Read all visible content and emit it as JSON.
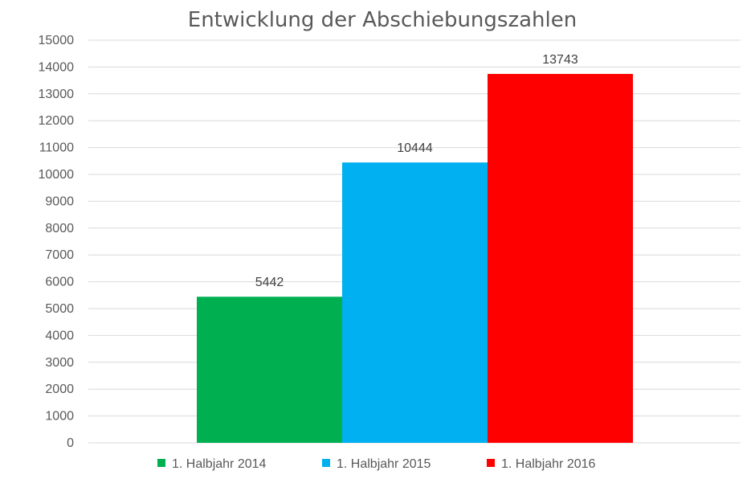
{
  "chart_data": {
    "type": "bar",
    "title": "Entwicklung der Abschiebungszahlen",
    "xlabel": "",
    "ylabel": "",
    "ylim": [
      0,
      15000
    ],
    "y_ticks": [
      0,
      1000,
      2000,
      3000,
      4000,
      5000,
      6000,
      7000,
      8000,
      9000,
      10000,
      11000,
      12000,
      13000,
      14000,
      15000
    ],
    "grid": true,
    "legend_position": "bottom",
    "series": [
      {
        "name": "1. Halbjahr 2014",
        "values": [
          5442
        ],
        "color": "#00b050"
      },
      {
        "name": "1. Halbjahr 2015",
        "values": [
          10444
        ],
        "color": "#00b0f0"
      },
      {
        "name": "1. Halbjahr 2016",
        "values": [
          13743
        ],
        "color": "#ff0000"
      }
    ]
  }
}
